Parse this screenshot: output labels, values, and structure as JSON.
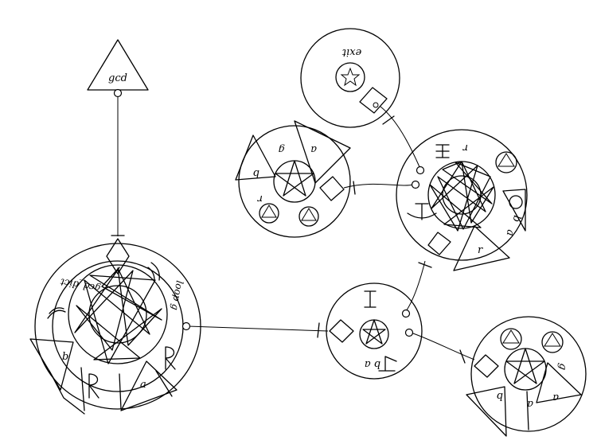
{
  "diagram": {
    "output_triangle": {
      "label": "gcd"
    },
    "main_circle": {
      "title": "gcd_dict",
      "loop_label": "loop g",
      "label_b": "b",
      "label_a": "a"
    },
    "exit_circle": {
      "label": "exit"
    },
    "left_small_circle": {
      "label_b": "b",
      "label_g": "g",
      "label_a": "a",
      "label_r": "r"
    },
    "right_large_circle": {
      "label_r_top": "r",
      "label_a": "a",
      "label_b": "b",
      "label_r_bottom": "r"
    },
    "center_circle": {
      "label": "b a"
    },
    "bottom_right_circle": {
      "label_b": "b",
      "label_a_mid": "a",
      "label_a_right": "a",
      "label_g": "g"
    }
  }
}
